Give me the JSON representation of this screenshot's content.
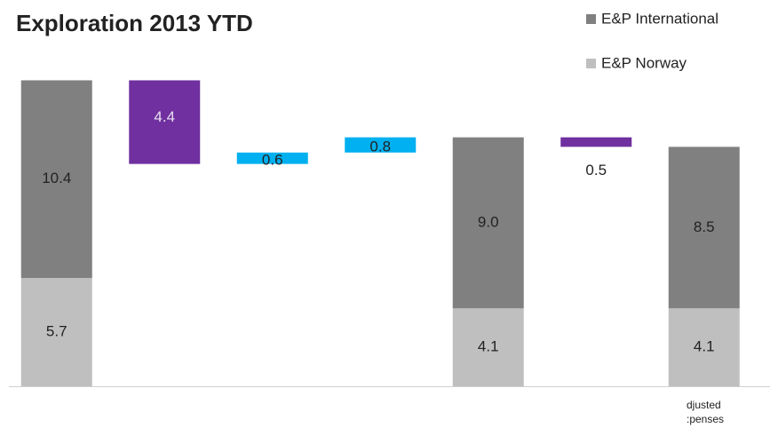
{
  "chart_data": {
    "type": "waterfall",
    "title": "Exploration 2013 YTD",
    "categories": [
      null,
      null,
      null,
      null,
      null,
      null,
      "djusted :penses"
    ],
    "series": [
      {
        "name": "E&P International",
        "color": "#808080",
        "values": [
          10.4,
          null,
          null,
          null,
          9.0,
          null,
          8.5
        ],
        "value_labels": [
          "10.4",
          null,
          null,
          null,
          "9.0",
          null,
          "8.5"
        ]
      },
      {
        "name": "E&P Norway",
        "color": "#bfbfbf",
        "values": [
          5.7,
          null,
          null,
          null,
          4.1,
          null,
          4.1
        ]
      }
    ],
    "steps": {
      "values": [
        null,
        -4.4,
        0.6,
        0.8,
        null,
        -0.5,
        null
      ],
      "value_labels": [
        null,
        "4.4",
        "0.6",
        "0.8",
        null,
        "0.5",
        null
      ],
      "increase_color": "#00b0f0",
      "decrease_color": "#7030a0"
    },
    "ylim": [
      0,
      17
    ]
  }
}
